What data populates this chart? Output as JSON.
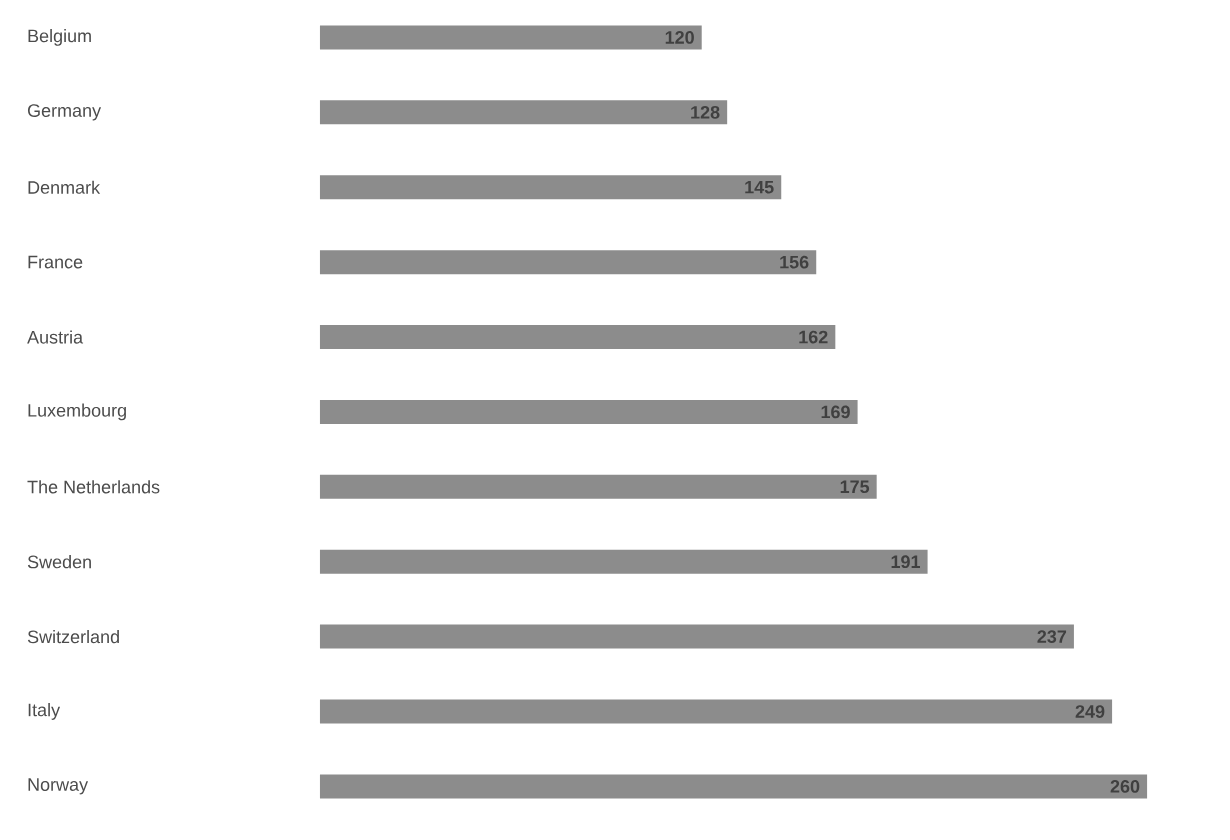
{
  "chart_data": {
    "type": "bar",
    "orientation": "horizontal",
    "data_labels": true,
    "categories": [
      "Belgium",
      "Germany",
      "Denmark",
      "France",
      "Austria",
      "Luxembourg",
      "The Netherlands",
      "Sweden",
      "Switzerland",
      "Italy",
      "Norway"
    ],
    "values": [
      120,
      128,
      145,
      156,
      162,
      169,
      175,
      191,
      237,
      249,
      260
    ],
    "color": "#8c8c8c",
    "tick_labels": "y"
  }
}
